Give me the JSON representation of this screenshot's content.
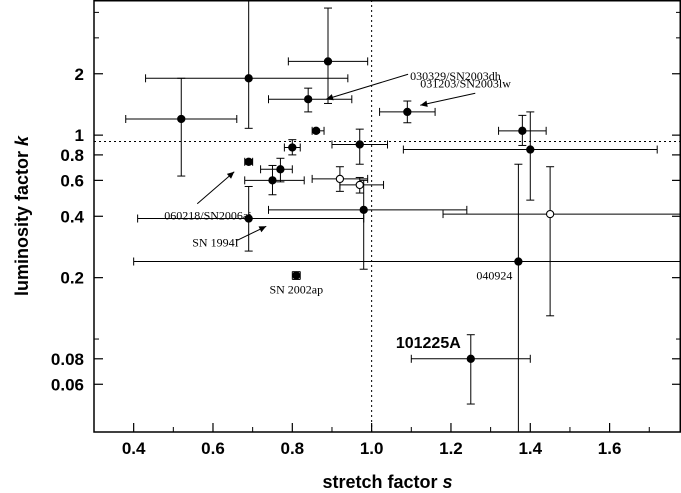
{
  "chart_data": {
    "type": "scatter",
    "xlabel": {
      "text": "stretch factor ",
      "var": "s"
    },
    "ylabel": {
      "text": "luminosity factor ",
      "var": "k"
    },
    "xlim": [
      0.3,
      1.78
    ],
    "ylim": [
      0.035,
      4.6
    ],
    "yscale": "log",
    "x_ticks": [
      0.4,
      0.6,
      0.8,
      1.0,
      1.2,
      1.4,
      1.6
    ],
    "x_tick_labels": [
      "0.4",
      "0.6",
      "0.8",
      "1.0",
      "1.2",
      "1.4",
      "1.6"
    ],
    "y_ticks": [
      0.06,
      0.08,
      0.2,
      0.4,
      0.6,
      0.8,
      1,
      2
    ],
    "y_tick_labels": [
      "0.06",
      "0.08",
      "0.2",
      "0.4",
      "0.6",
      "0.8",
      "1",
      "2"
    ],
    "reference_lines": {
      "x": 1.0,
      "y": 0.93
    },
    "grid": false,
    "points": [
      {
        "x": 0.52,
        "y": 1.2,
        "xerr": [
          0.38,
          0.66
        ],
        "yerr": [
          0.63,
          1.9
        ],
        "filled": true
      },
      {
        "x": 0.69,
        "y": 1.9,
        "xerr": [
          0.43,
          0.94
        ],
        "yerr": [
          1.08,
          4.6
        ],
        "filled": true
      },
      {
        "x": 0.89,
        "y": 2.3,
        "xerr": [
          0.79,
          0.99
        ],
        "yerr": [
          1.43,
          4.2
        ],
        "filled": true
      },
      {
        "x": 0.84,
        "y": 1.5,
        "xerr": [
          0.74,
          0.95
        ],
        "yerr": [
          1.3,
          1.7
        ],
        "filled": true
      },
      {
        "x": 1.09,
        "y": 1.3,
        "xerr": [
          1.02,
          1.16
        ],
        "yerr": [
          1.15,
          1.47
        ],
        "filled": true
      },
      {
        "x": 0.86,
        "y": 1.05,
        "xerr": [
          0.85,
          0.88
        ],
        "yerr": [
          1.03,
          1.07
        ],
        "filled": true
      },
      {
        "x": 0.8,
        "y": 0.87,
        "xerr": [
          0.78,
          0.82
        ],
        "yerr": [
          0.8,
          0.95
        ],
        "filled": true
      },
      {
        "x": 0.97,
        "y": 0.9,
        "xerr": [
          0.9,
          1.04
        ],
        "yerr": [
          0.72,
          1.07
        ],
        "filled": true
      },
      {
        "x": 1.38,
        "y": 1.05,
        "xerr": [
          1.32,
          1.44
        ],
        "yerr": [
          0.89,
          1.25
        ],
        "filled": true
      },
      {
        "x": 1.4,
        "y": 0.85,
        "xerr": [
          1.08,
          1.72
        ],
        "yerr": [
          0.48,
          1.3
        ],
        "filled": true
      },
      {
        "x": 0.69,
        "y": 0.74,
        "xerr": [
          0.68,
          0.7
        ],
        "yerr": [
          0.72,
          0.76
        ],
        "filled": true
      },
      {
        "x": 0.77,
        "y": 0.68,
        "xerr": [
          0.72,
          0.8
        ],
        "yerr": [
          0.59,
          0.77
        ],
        "filled": true
      },
      {
        "x": 0.75,
        "y": 0.6,
        "xerr": [
          0.68,
          0.83
        ],
        "yerr": [
          0.51,
          0.71
        ],
        "filled": true
      },
      {
        "x": 0.92,
        "y": 0.61,
        "xerr": [
          0.85,
          0.99
        ],
        "yerr": [
          0.53,
          0.7
        ],
        "filled": false
      },
      {
        "x": 0.97,
        "y": 0.57,
        "xerr": [
          0.92,
          1.03
        ],
        "yerr": [
          0.52,
          0.62
        ],
        "filled": false
      },
      {
        "x": 0.69,
        "y": 0.39,
        "xerr": [
          0.41,
          0.98
        ],
        "yerr": [
          0.27,
          0.56
        ],
        "filled": true
      },
      {
        "x": 0.98,
        "y": 0.43,
        "xerr": [
          0.74,
          1.24
        ],
        "yerr": [
          0.22,
          0.6
        ],
        "filled": true
      },
      {
        "x": 1.45,
        "y": 0.41,
        "xerr": [
          1.18,
          1.78
        ],
        "yerr": [
          0.13,
          0.7
        ],
        "filled": false
      },
      {
        "x": 1.37,
        "y": 0.24,
        "xerr": [
          0.4,
          1.78
        ],
        "yerr": [
          0.035,
          0.72
        ],
        "filled": true
      },
      {
        "x": 0.81,
        "y": 0.205,
        "xerr": [
          0.8,
          0.82
        ],
        "yerr": [
          0.196,
          0.214
        ],
        "filled": true
      },
      {
        "x": 1.25,
        "y": 0.08,
        "xerr": [
          1.1,
          1.4
        ],
        "yerr": [
          0.048,
          0.105
        ],
        "filled": true
      }
    ],
    "annotations": [
      {
        "text": "030329/SN2003dh",
        "style": "normal",
        "x": 0.87,
        "y": 1.45
      },
      {
        "text": "031203/SN2003lw",
        "style": "normal",
        "x": 1.11,
        "y": 1.37
      },
      {
        "text": "060218/SN2006aj",
        "style": "normal",
        "x": 0.62,
        "y": 0.7
      },
      {
        "text": "SN 1994I",
        "style": "normal",
        "x": 0.62,
        "y": 0.4
      },
      {
        "text": "SN 2002ap",
        "style": "normal",
        "x": 0.81,
        "y": 0.205
      },
      {
        "text": "040924",
        "style": "normal",
        "x": 1.37,
        "y": 0.24
      },
      {
        "text": "101225A",
        "style": "bold",
        "x": 1.25,
        "y": 0.08
      }
    ]
  }
}
